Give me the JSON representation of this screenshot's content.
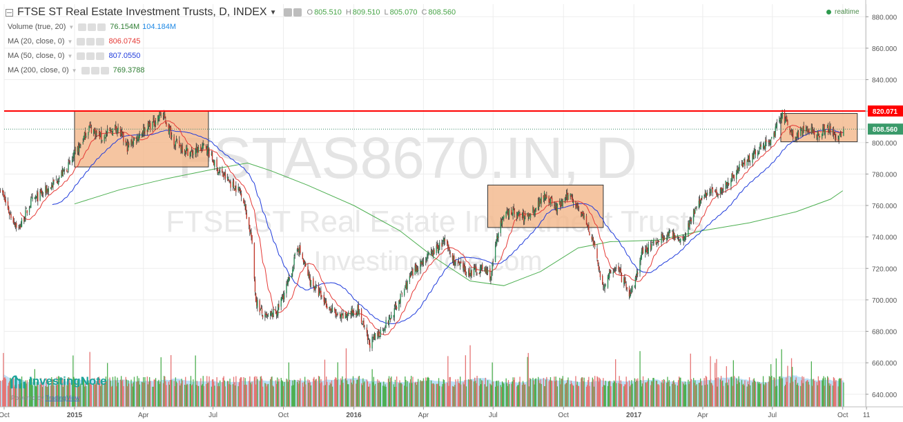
{
  "header": {
    "title": "FTSE ST Real Estate Investment Trusts, D, INDEX",
    "o_label": "O",
    "o": "805.510",
    "h_label": "H",
    "h": "809.510",
    "l_label": "L",
    "l": "805.070",
    "c_label": "C",
    "c": "808.560",
    "realtime": "realtime"
  },
  "indicators": [
    {
      "label": "Volume (true, 20)",
      "values": [
        "76.154M",
        "104.184M"
      ],
      "colors": [
        "#2e7d32",
        "#1e88e5"
      ]
    },
    {
      "label": "MA (20, close, 0)",
      "values": [
        "806.0745"
      ],
      "colors": [
        "#e53935"
      ]
    },
    {
      "label": "MA (50, close, 0)",
      "values": [
        "807.0550"
      ],
      "colors": [
        "#1e3adb"
      ]
    },
    {
      "label": "MA (200, close, 0)",
      "values": [
        "769.3788"
      ],
      "colors": [
        "#2e7d32"
      ]
    }
  ],
  "watermark": {
    "line1": "FSTAS8670.IN, D",
    "line2": "FTSE ST Real Estate Investment Trusts",
    "line3": "InvestingNote.com"
  },
  "logo": {
    "name": "InvestingNote",
    "powered_prefix": "Powered by ",
    "powered_link": "TradingView"
  },
  "colors": {
    "up": "#26a69a",
    "down": "#ef5350",
    "ma20": "#e53935",
    "ma50": "#1e3adb",
    "ma200": "#4caf50",
    "resistance": "#ff0000",
    "box_fill": "#f2b78a",
    "box_stroke": "#333333",
    "vol_ma_fill": "#8ec9ee"
  },
  "chart_data": {
    "type": "candlestick",
    "x_ticks": [
      "Oct",
      "2015",
      "Apr",
      "Jul",
      "Oct",
      "2016",
      "Apr",
      "Jul",
      "Oct",
      "2017",
      "Apr",
      "Jul",
      "Oct",
      "11"
    ],
    "y_ticks": [
      "880.000",
      "860.000",
      "840.000",
      "820.000",
      "800.000",
      "780.000",
      "760.000",
      "740.000",
      "720.000",
      "700.000",
      "680.000",
      "660.000",
      "640.000"
    ],
    "ylim": [
      632,
      888
    ],
    "date_range": [
      "2014-10-01",
      "2017-10-31"
    ],
    "resistance": {
      "value": 820.071,
      "label": "820.071"
    },
    "last_price": {
      "value": 808.56,
      "label": "808.560"
    },
    "close_path": [
      [
        "2014-09-25",
        772
      ],
      [
        "2014-10-08",
        755
      ],
      [
        "2014-10-20",
        745
      ],
      [
        "2014-11-05",
        762
      ],
      [
        "2014-12-01",
        772
      ],
      [
        "2014-12-24",
        785
      ],
      [
        "2015-01-08",
        798
      ],
      [
        "2015-01-20",
        810
      ],
      [
        "2015-02-06",
        803
      ],
      [
        "2015-02-25",
        810
      ],
      [
        "2015-03-11",
        797
      ],
      [
        "2015-03-30",
        807
      ],
      [
        "2015-04-15",
        813
      ],
      [
        "2015-04-25",
        819
      ],
      [
        "2015-05-12",
        800
      ],
      [
        "2015-06-03",
        793
      ],
      [
        "2015-06-22",
        798
      ],
      [
        "2015-07-05",
        784
      ],
      [
        "2015-07-22",
        775
      ],
      [
        "2015-08-08",
        768
      ],
      [
        "2015-08-20",
        740
      ],
      [
        "2015-08-26",
        700
      ],
      [
        "2015-09-06",
        688
      ],
      [
        "2015-09-22",
        692
      ],
      [
        "2015-10-08",
        712
      ],
      [
        "2015-10-20",
        734
      ],
      [
        "2015-11-05",
        712
      ],
      [
        "2015-11-28",
        696
      ],
      [
        "2015-12-14",
        688
      ],
      [
        "2016-01-06",
        694
      ],
      [
        "2016-01-21",
        672
      ],
      [
        "2016-02-02",
        678
      ],
      [
        "2016-02-20",
        690
      ],
      [
        "2016-03-10",
        710
      ],
      [
        "2016-03-25",
        722
      ],
      [
        "2016-04-13",
        730
      ],
      [
        "2016-04-28",
        737
      ],
      [
        "2016-05-12",
        724
      ],
      [
        "2016-05-28",
        717
      ],
      [
        "2016-06-18",
        720
      ],
      [
        "2016-06-28",
        715
      ],
      [
        "2016-07-08",
        745
      ],
      [
        "2016-07-22",
        757
      ],
      [
        "2016-08-12",
        752
      ],
      [
        "2016-08-28",
        760
      ],
      [
        "2016-09-06",
        768
      ],
      [
        "2016-09-22",
        758
      ],
      [
        "2016-10-10",
        767
      ],
      [
        "2016-10-25",
        755
      ],
      [
        "2016-11-08",
        738
      ],
      [
        "2016-11-22",
        708
      ],
      [
        "2016-12-08",
        722
      ],
      [
        "2016-12-28",
        702
      ],
      [
        "2017-01-12",
        730
      ],
      [
        "2017-01-28",
        737
      ],
      [
        "2017-02-15",
        742
      ],
      [
        "2017-03-06",
        738
      ],
      [
        "2017-03-18",
        754
      ],
      [
        "2017-04-05",
        768
      ],
      [
        "2017-04-26",
        770
      ],
      [
        "2017-05-22",
        786
      ],
      [
        "2017-06-12",
        795
      ],
      [
        "2017-07-01",
        803
      ],
      [
        "2017-07-14",
        818
      ],
      [
        "2017-07-30",
        803
      ],
      [
        "2017-08-12",
        809
      ],
      [
        "2017-08-28",
        805
      ],
      [
        "2017-09-10",
        810
      ],
      [
        "2017-09-24",
        803
      ],
      [
        "2017-10-02",
        808.56
      ]
    ],
    "ma200_path": [
      [
        "2015-01-01",
        761
      ],
      [
        "2015-03-01",
        770
      ],
      [
        "2015-05-01",
        777
      ],
      [
        "2015-07-01",
        783
      ],
      [
        "2015-08-15",
        787
      ],
      [
        "2015-09-15",
        782
      ],
      [
        "2015-11-01",
        773
      ],
      [
        "2016-01-01",
        760
      ],
      [
        "2016-03-01",
        744
      ],
      [
        "2016-04-15",
        727
      ],
      [
        "2016-06-01",
        712
      ],
      [
        "2016-07-15",
        709
      ],
      [
        "2016-09-01",
        718
      ],
      [
        "2016-10-20",
        733
      ],
      [
        "2016-12-01",
        737
      ],
      [
        "2017-02-01",
        738
      ],
      [
        "2017-04-01",
        744
      ],
      [
        "2017-06-01",
        749
      ],
      [
        "2017-08-01",
        756
      ],
      [
        "2017-09-15",
        764
      ],
      [
        "2017-10-01",
        769.38
      ]
    ],
    "boxes": [
      {
        "from": "2015-01-01",
        "to": "2015-06-25",
        "top": 820.071,
        "bottom": 784.5
      },
      {
        "from": "2016-06-24",
        "to": "2016-11-22",
        "top": 773.0,
        "bottom": 746.0
      },
      {
        "from": "2017-07-12",
        "to": "2017-10-20",
        "top": 818.5,
        "bottom": 800.5
      }
    ],
    "legend": [
      "Volume (true, 20)",
      "MA (20, close, 0)",
      "MA (50, close, 0)",
      "MA (200, close, 0)"
    ],
    "grid": true
  }
}
